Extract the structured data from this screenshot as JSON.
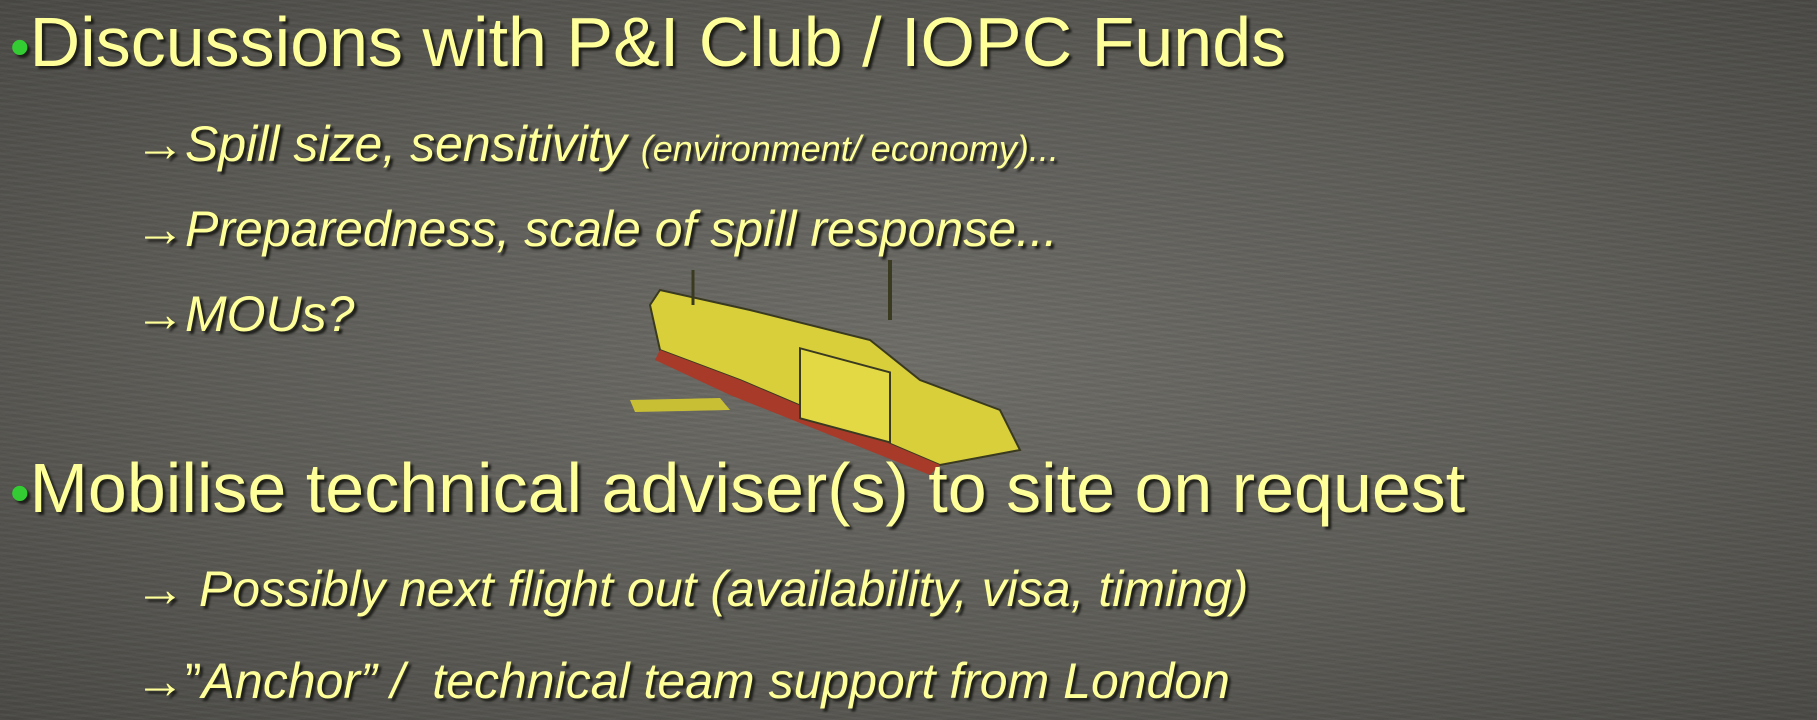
{
  "slide": {
    "bullets": [
      {
        "text": "Discussions with P&I Club / IOPC Funds",
        "items": [
          {
            "parts": [
              "Spill size, sensitivity",
              "(environment/ economy)..."
            ]
          },
          {
            "parts": [
              "Preparedness, scale of spill response..."
            ]
          },
          {
            "parts": [
              "MOUs?"
            ]
          }
        ]
      },
      {
        "text": "Mobilise technical adviser(s) to site on request",
        "items": [
          {
            "parts": [
              "Possibly next flight out (availability, visa, timing)"
            ]
          },
          {
            "parts": [
              "”",
              "Anchor” /  technical team support from London"
            ]
          }
        ]
      }
    ]
  }
}
